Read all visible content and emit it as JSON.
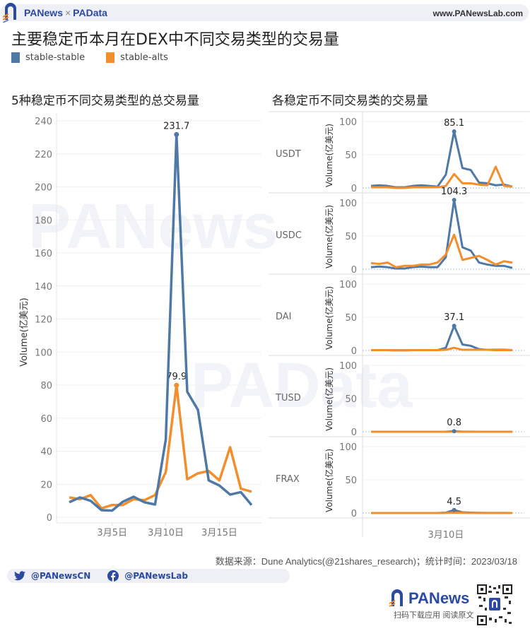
{
  "header": {
    "brand_left": "PANews",
    "brand_sep": "×",
    "brand_right": "PAData",
    "website": "www.PANewsLab.com"
  },
  "title": "主要稳定币本月在DEX中不同交易类型的交易量",
  "legend": [
    {
      "label": "stable-stable",
      "color": "#4e79a7"
    },
    {
      "label": "stable-alts",
      "color": "#f28e2b"
    }
  ],
  "left_chart": {
    "subtitle": "5种稳定币不同交易类型的总交易量",
    "ylabel": "Volume(亿美元)",
    "yticks": [
      "0",
      "20",
      "40",
      "60",
      "80",
      "100",
      "120",
      "140",
      "160",
      "180",
      "200",
      "220",
      "240"
    ],
    "xticks": [
      "3月5日",
      "3月10日",
      "3月15日"
    ],
    "peak_labels": {
      "stable_stable": "231.7",
      "stable_alts": "79.9"
    }
  },
  "right_chart": {
    "subtitle": "各稳定币不同交易类的交易量",
    "ylabel": "Volume(亿美元)",
    "yticks": [
      "0",
      "50",
      "100"
    ],
    "xtick": "3月10日",
    "panels": [
      {
        "name": "USDT",
        "peak_label": "85.1"
      },
      {
        "name": "USDC",
        "peak_label": "104.3"
      },
      {
        "name": "DAI",
        "peak_label": "37.1"
      },
      {
        "name": "TUSD",
        "peak_label": "0.8"
      },
      {
        "name": "FRAX",
        "peak_label": "4.5"
      }
    ]
  },
  "footer": {
    "source": "数据来源：Dune Analytics(@21shares_research)；统计时间：2023/03/18",
    "twitter": "@PANewsCN",
    "facebook": "@PANewsLab",
    "app_brand": "PANews",
    "cta": "扫码下载应用  阅读原文"
  },
  "chart_data": [
    {
      "type": "line",
      "title": "5种稳定币不同交易类型的总交易量",
      "xlabel": "",
      "ylabel": "Volume(亿美元)",
      "ylim": [
        0,
        240
      ],
      "grid": true,
      "x": [
        "3月1日",
        "3月2日",
        "3月3日",
        "3月4日",
        "3月5日",
        "3月6日",
        "3月7日",
        "3月8日",
        "3月9日",
        "3月10日",
        "3月11日",
        "3月12日",
        "3月13日",
        "3月14日",
        "3月15日",
        "3月16日",
        "3月17日",
        "3月18日"
      ],
      "series": [
        {
          "name": "stable-stable",
          "color": "#4e79a7",
          "values": [
            9.1,
            12.0,
            9.9,
            4.3,
            4.0,
            9.4,
            12.4,
            9.1,
            7.7,
            47.0,
            231.7,
            76.0,
            65.0,
            22.3,
            19.2,
            13.7,
            15.2,
            7.4
          ]
        },
        {
          "name": "stable-alts",
          "color": "#f28e2b",
          "values": [
            12.0,
            10.9,
            13.4,
            5.4,
            7.4,
            7.4,
            10.9,
            10.3,
            13.4,
            27.3,
            79.9,
            23.0,
            26.6,
            28.0,
            22.3,
            42.4,
            17.3,
            15.5
          ]
        }
      ],
      "annotations": [
        "231.7",
        "79.9"
      ]
    },
    {
      "type": "line",
      "title": "各稳定币不同交易类的交易量 - USDT",
      "ylabel": "Volume(亿美元)",
      "ylim": [
        0,
        100
      ],
      "x": [
        "3月1日",
        "3月2日",
        "3月3日",
        "3月4日",
        "3月5日",
        "3月6日",
        "3月7日",
        "3月8日",
        "3月9日",
        "3月10日",
        "3月11日",
        "3月12日",
        "3月13日",
        "3月14日",
        "3月15日",
        "3月16日",
        "3月17日",
        "3月18日"
      ],
      "series": [
        {
          "name": "stable-stable",
          "values": [
            3,
            4,
            3,
            1,
            1,
            3,
            4,
            3,
            2,
            20,
            85.1,
            30,
            27,
            8,
            7,
            4,
            5,
            2
          ]
        },
        {
          "name": "stable-alts",
          "values": [
            1,
            1,
            1,
            0,
            0,
            1,
            1,
            1,
            1,
            3,
            21,
            7,
            7,
            5,
            4,
            32,
            3,
            2
          ]
        }
      ],
      "annotations": [
        "85.1"
      ]
    },
    {
      "type": "line",
      "title": "各稳定币不同交易类的交易量 - USDC",
      "ylabel": "Volume(亿美元)",
      "ylim": [
        0,
        100
      ],
      "x": [
        "3月1日",
        "3月2日",
        "3月3日",
        "3月4日",
        "3月5日",
        "3月6日",
        "3月7日",
        "3月8日",
        "3月9日",
        "3月10日",
        "3月11日",
        "3月12日",
        "3月13日",
        "3月14日",
        "3月15日",
        "3月16日",
        "3月17日",
        "3月18日"
      ],
      "series": [
        {
          "name": "stable-stable",
          "values": [
            3,
            4,
            3,
            1,
            1,
            3,
            4,
            3,
            3,
            18,
            104.3,
            33,
            28,
            10,
            7,
            5,
            5,
            2
          ]
        },
        {
          "name": "stable-alts",
          "values": [
            9,
            8,
            10,
            3,
            5,
            5,
            7,
            7,
            10,
            22,
            52,
            14,
            17,
            20,
            14,
            7,
            12,
            10
          ]
        }
      ],
      "annotations": [
        "104.3"
      ]
    },
    {
      "type": "line",
      "title": "各稳定币不同交易类的交易量 - DAI",
      "ylabel": "Volume(亿美元)",
      "ylim": [
        0,
        100
      ],
      "x": [
        "3月1日",
        "3月2日",
        "3月3日",
        "3月4日",
        "3月5日",
        "3月6日",
        "3月7日",
        "3月8日",
        "3月9日",
        "3月10日",
        "3月11日",
        "3月12日",
        "3月13日",
        "3月14日",
        "3月15日",
        "3月16日",
        "3月17日",
        "3月18日"
      ],
      "series": [
        {
          "name": "stable-stable",
          "values": [
            0.5,
            0.5,
            0.5,
            0.3,
            0.3,
            0.5,
            0.5,
            0.5,
            0.5,
            4,
            37.1,
            9,
            7,
            2,
            1,
            1,
            1,
            0.5
          ]
        },
        {
          "name": "stable-alts",
          "values": [
            0.5,
            0.5,
            0.5,
            0.3,
            0.3,
            0.5,
            0.5,
            0.5,
            0.5,
            1,
            4,
            1,
            1,
            1,
            1,
            0.5,
            0.5,
            0.5
          ]
        }
      ],
      "annotations": [
        "37.1"
      ]
    },
    {
      "type": "line",
      "title": "各稳定币不同交易类的交易量 - TUSD",
      "ylabel": "Volume(亿美元)",
      "ylim": [
        0,
        100
      ],
      "x": [
        "3月1日",
        "3月2日",
        "3月3日",
        "3月4日",
        "3月5日",
        "3月6日",
        "3月7日",
        "3月8日",
        "3月9日",
        "3月10日",
        "3月11日",
        "3月12日",
        "3月13日",
        "3月14日",
        "3月15日",
        "3月16日",
        "3月17日",
        "3月18日"
      ],
      "series": [
        {
          "name": "stable-stable",
          "values": [
            0,
            0,
            0,
            0,
            0,
            0,
            0,
            0,
            0,
            0.1,
            0.8,
            0.1,
            0.1,
            0,
            0,
            0,
            0,
            0
          ]
        },
        {
          "name": "stable-alts",
          "values": [
            0,
            0,
            0,
            0,
            0,
            0,
            0,
            0,
            0,
            0,
            0.1,
            0,
            0,
            0,
            0,
            0,
            0,
            0
          ]
        }
      ],
      "annotations": [
        "0.8"
      ]
    },
    {
      "type": "line",
      "title": "各稳定币不同交易类的交易量 - FRAX",
      "ylabel": "Volume(亿美元)",
      "ylim": [
        0,
        100
      ],
      "x": [
        "3月1日",
        "3月2日",
        "3月3日",
        "3月4日",
        "3月5日",
        "3月6日",
        "3月7日",
        "3月8日",
        "3月9日",
        "3月10日",
        "3月11日",
        "3月12日",
        "3月13日",
        "3月14日",
        "3月15日",
        "3月16日",
        "3月17日",
        "3月18日"
      ],
      "series": [
        {
          "name": "stable-stable",
          "values": [
            0,
            0,
            0,
            0,
            0,
            0,
            0,
            0,
            0,
            0.5,
            4.5,
            1,
            0.5,
            0.2,
            0.1,
            0.1,
            0.1,
            0
          ]
        },
        {
          "name": "stable-alts",
          "values": [
            0,
            0,
            0,
            0,
            0,
            0,
            0,
            0,
            0,
            0.1,
            0.5,
            0.2,
            0.1,
            0.1,
            0,
            0,
            0,
            0
          ]
        }
      ],
      "annotations": [
        "4.5"
      ]
    }
  ]
}
